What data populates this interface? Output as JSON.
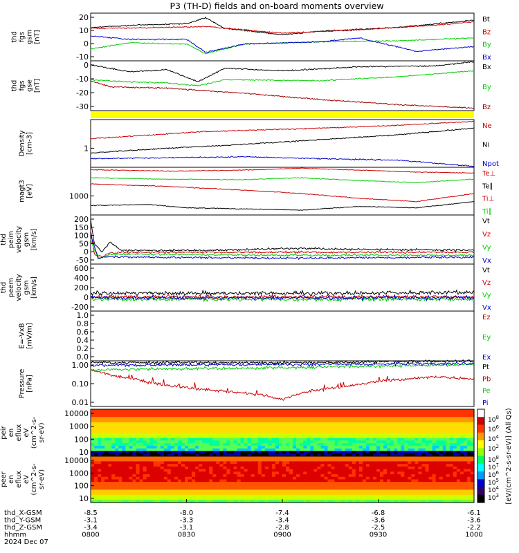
{
  "title": "P3 (TH-D) fields and on-board moments overview",
  "chart_data": [
    {
      "type": "line",
      "ylabel": [
        "thd",
        "fgs",
        "gsm",
        "[nT]"
      ],
      "yticks": [
        "20",
        "10",
        "0",
        "-10"
      ],
      "series": [
        {
          "name": "Bt",
          "color": "#000000"
        },
        {
          "name": "Bz",
          "color": "#cc0000"
        },
        {
          "name": "By",
          "color": "#00cc00"
        },
        {
          "name": "Bx",
          "color": "#0000cc"
        }
      ]
    },
    {
      "type": "line",
      "ylabel": [
        "thd",
        "fgs",
        "gse",
        "[nT]"
      ],
      "yticks": [
        "0",
        "-10",
        "-20",
        "-30"
      ],
      "series": [
        {
          "name": "Bx",
          "color": "#000000"
        },
        {
          "name": "By",
          "color": "#00cc00"
        },
        {
          "name": "Bz",
          "color": "#990000"
        }
      ]
    },
    {
      "type": "line",
      "ylabel": [
        "Density",
        "[cm-3]"
      ],
      "yscale": "log",
      "yticks": [
        "1"
      ],
      "series": [
        {
          "name": "Ne",
          "color": "#cc0000"
        },
        {
          "name": "Ni",
          "color": "#000000"
        },
        {
          "name": "Npot",
          "color": "#0000cc"
        }
      ]
    },
    {
      "type": "line",
      "ylabel": [
        "magt3",
        "[eV]"
      ],
      "yscale": "log",
      "yticks": [
        "1000"
      ],
      "series": [
        {
          "name": "Te⊥",
          "color": "#cc0000"
        },
        {
          "name": "Te∥",
          "color": "#000000"
        },
        {
          "name": "Ti⊥",
          "color": "#cc0000"
        },
        {
          "name": "Ti∥",
          "color": "#00cc00"
        }
      ]
    },
    {
      "type": "line",
      "ylabel": [
        "thd",
        "peim",
        "velocity",
        "gsm",
        "[km/s]"
      ],
      "yticks": [
        "200",
        "150",
        "100",
        "50",
        "0",
        "-50"
      ],
      "series": [
        {
          "name": "Vt",
          "color": "#000000"
        },
        {
          "name": "Vz",
          "color": "#cc0000"
        },
        {
          "name": "Vy",
          "color": "#00cc00"
        },
        {
          "name": "Vx",
          "color": "#0000cc"
        }
      ]
    },
    {
      "type": "line",
      "ylabel": [
        "thd",
        "peem",
        "velocity",
        "gsm",
        "[km/s]"
      ],
      "yticks": [
        "600",
        "400",
        "200",
        "0",
        "-200"
      ],
      "series": [
        {
          "name": "Vt",
          "color": "#000000"
        },
        {
          "name": "Vz",
          "color": "#cc0000"
        },
        {
          "name": "Vy",
          "color": "#00cc00"
        },
        {
          "name": "Vx",
          "color": "#0000cc"
        }
      ]
    },
    {
      "type": "line",
      "ylabel": [
        "E=-VxB",
        "[mV/m]"
      ],
      "yticks": [
        "1.0",
        "0.8",
        "0.6",
        "0.4",
        "0.2",
        "0.0"
      ],
      "series": [
        {
          "name": "Ez",
          "color": "#cc0000"
        },
        {
          "name": "Ey",
          "color": "#00cc00"
        },
        {
          "name": "Ex",
          "color": "#0000cc"
        }
      ]
    },
    {
      "type": "line",
      "ylabel": [
        "Pressure",
        "[nPa]"
      ],
      "yscale": "log",
      "yticks": [
        "1.00",
        "0.10",
        "0.01"
      ],
      "series": [
        {
          "name": "Pt",
          "color": "#000000"
        },
        {
          "name": "Pb",
          "color": "#cc0000"
        },
        {
          "name": "Pe",
          "color": "#00cc00"
        },
        {
          "name": "Pi",
          "color": "#0000cc"
        }
      ]
    },
    {
      "type": "heatmap",
      "ylabel": [
        "thd",
        "peir",
        "en",
        "eflux",
        "eV",
        "(cm^2-s-",
        "sr-eV)"
      ],
      "yticks": [
        "10000",
        "1000",
        "100",
        "10"
      ]
    },
    {
      "type": "heatmap",
      "ylabel": [
        "thd",
        "peer",
        "en",
        "eflux",
        "eV",
        "(cm^2-s-",
        "sr-eV)"
      ],
      "yticks": [
        "10000",
        "1000",
        "100",
        "10"
      ]
    }
  ],
  "colorbar": {
    "label": "[eV/(cm^2-s-sr-eV)] (All Qs)",
    "upper_ticks": [
      "10^8",
      "10^6",
      "10^4",
      "10^2"
    ],
    "lower_ticks": [
      "10^8",
      "10^7",
      "10^6",
      "10^5",
      "10^4",
      "10^3"
    ]
  },
  "x_axis": {
    "row_labels": [
      "thd_X-GSM",
      "thd_Y-GSM",
      "thd_Z-GSM",
      "hhmm",
      "2024 Dec 07"
    ],
    "ticks": [
      {
        "x": "-8.5",
        "y": "-3.1",
        "z": "-3.4",
        "time": "0800"
      },
      {
        "x": "-8.0",
        "y": "-3.3",
        "z": "-3.1",
        "time": "0830"
      },
      {
        "x": "-7.4",
        "y": "-3.4",
        "z": "-2.8",
        "time": "0900"
      },
      {
        "x": "-6.8",
        "y": "-3.6",
        "z": "-2.5",
        "time": "0930"
      },
      {
        "x": "-6.1",
        "y": "-3.6",
        "z": "-2.2",
        "time": "1000"
      }
    ]
  }
}
